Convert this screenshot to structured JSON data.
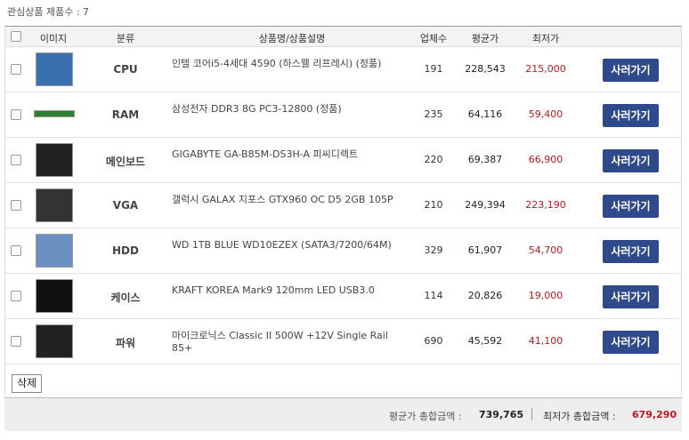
{
  "header": {
    "count": "관심상품 제품수 : 7"
  },
  "table": {
    "columns": [
      "이미지",
      "분류",
      "상품명/상품설명",
      "업체수",
      "평균가",
      "최저가"
    ],
    "rows": [
      {
        "category": "CPU",
        "name": "인텔 코어i5-4세대 4590 (하스웰 리프레시) (정품)",
        "sellers": "191",
        "avg": "228,543",
        "min": "215,000",
        "button": "사러가기"
      },
      {
        "category": "RAM",
        "name": "삼성전자 DDR3 8G PC3-12800 (정품)",
        "sellers": "235",
        "avg": "64,116",
        "min": "59,400",
        "button": "사러가기"
      },
      {
        "category": "메인보드",
        "name": "GIGABYTE GA-B85M-DS3H-A 피씨디렉트",
        "sellers": "220",
        "avg": "69,387",
        "min": "66,900",
        "button": "사러가기"
      },
      {
        "category": "VGA",
        "name": "갤럭시 GALAX 지포스 GTX960 OC D5 2GB 105P",
        "sellers": "210",
        "avg": "249,394",
        "min": "223,190",
        "button": "사러가기"
      },
      {
        "category": "HDD",
        "name": "WD 1TB BLUE WD10EZEX (SATA3/7200/64M)",
        "sellers": "329",
        "avg": "61,907",
        "min": "54,700",
        "button": "사러가기"
      },
      {
        "category": "케이스",
        "name": "KRAFT KOREA Mark9 120mm LED USB3.0",
        "sellers": "114",
        "avg": "20,826",
        "min": "19,000",
        "button": "사러가기"
      },
      {
        "category": "파워",
        "name": "마이크로닉스 Classic II 500W +12V Single Rail 85+",
        "sellers": "690",
        "avg": "45,592",
        "min": "41,100",
        "button": "사러가기"
      }
    ]
  },
  "delete_button": "삭제",
  "footer": {
    "avg_label": "평균가 총합금액 :",
    "avg_total": "739,765",
    "min_label": "최저가 총합금액 :",
    "min_total": "679,290"
  }
}
